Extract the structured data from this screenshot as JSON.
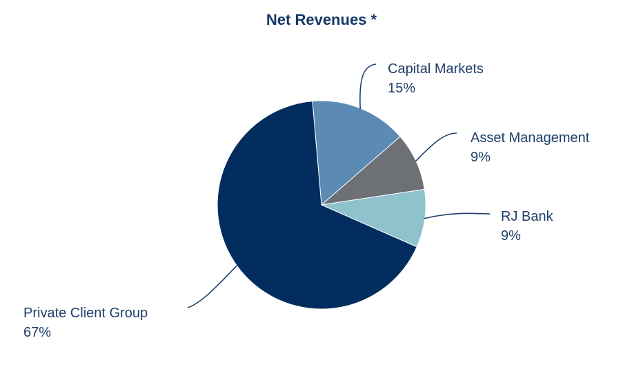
{
  "chart_data": {
    "type": "pie",
    "title": "Net Revenues *",
    "slices": [
      {
        "name": "Capital Markets",
        "value": 15,
        "value_label": "15%",
        "color": "#5b8ab4"
      },
      {
        "name": "Asset Management",
        "value": 9,
        "value_label": "9%",
        "color": "#6d7176"
      },
      {
        "name": "RJ Bank",
        "value": 9,
        "value_label": "9%",
        "color": "#8ec2cd"
      },
      {
        "name": "Private Client Group",
        "value": 67,
        "value_label": "67%",
        "color": "#022d5e"
      }
    ],
    "start_angle_deg": -5,
    "direction": "clockwise",
    "legend": "none"
  }
}
